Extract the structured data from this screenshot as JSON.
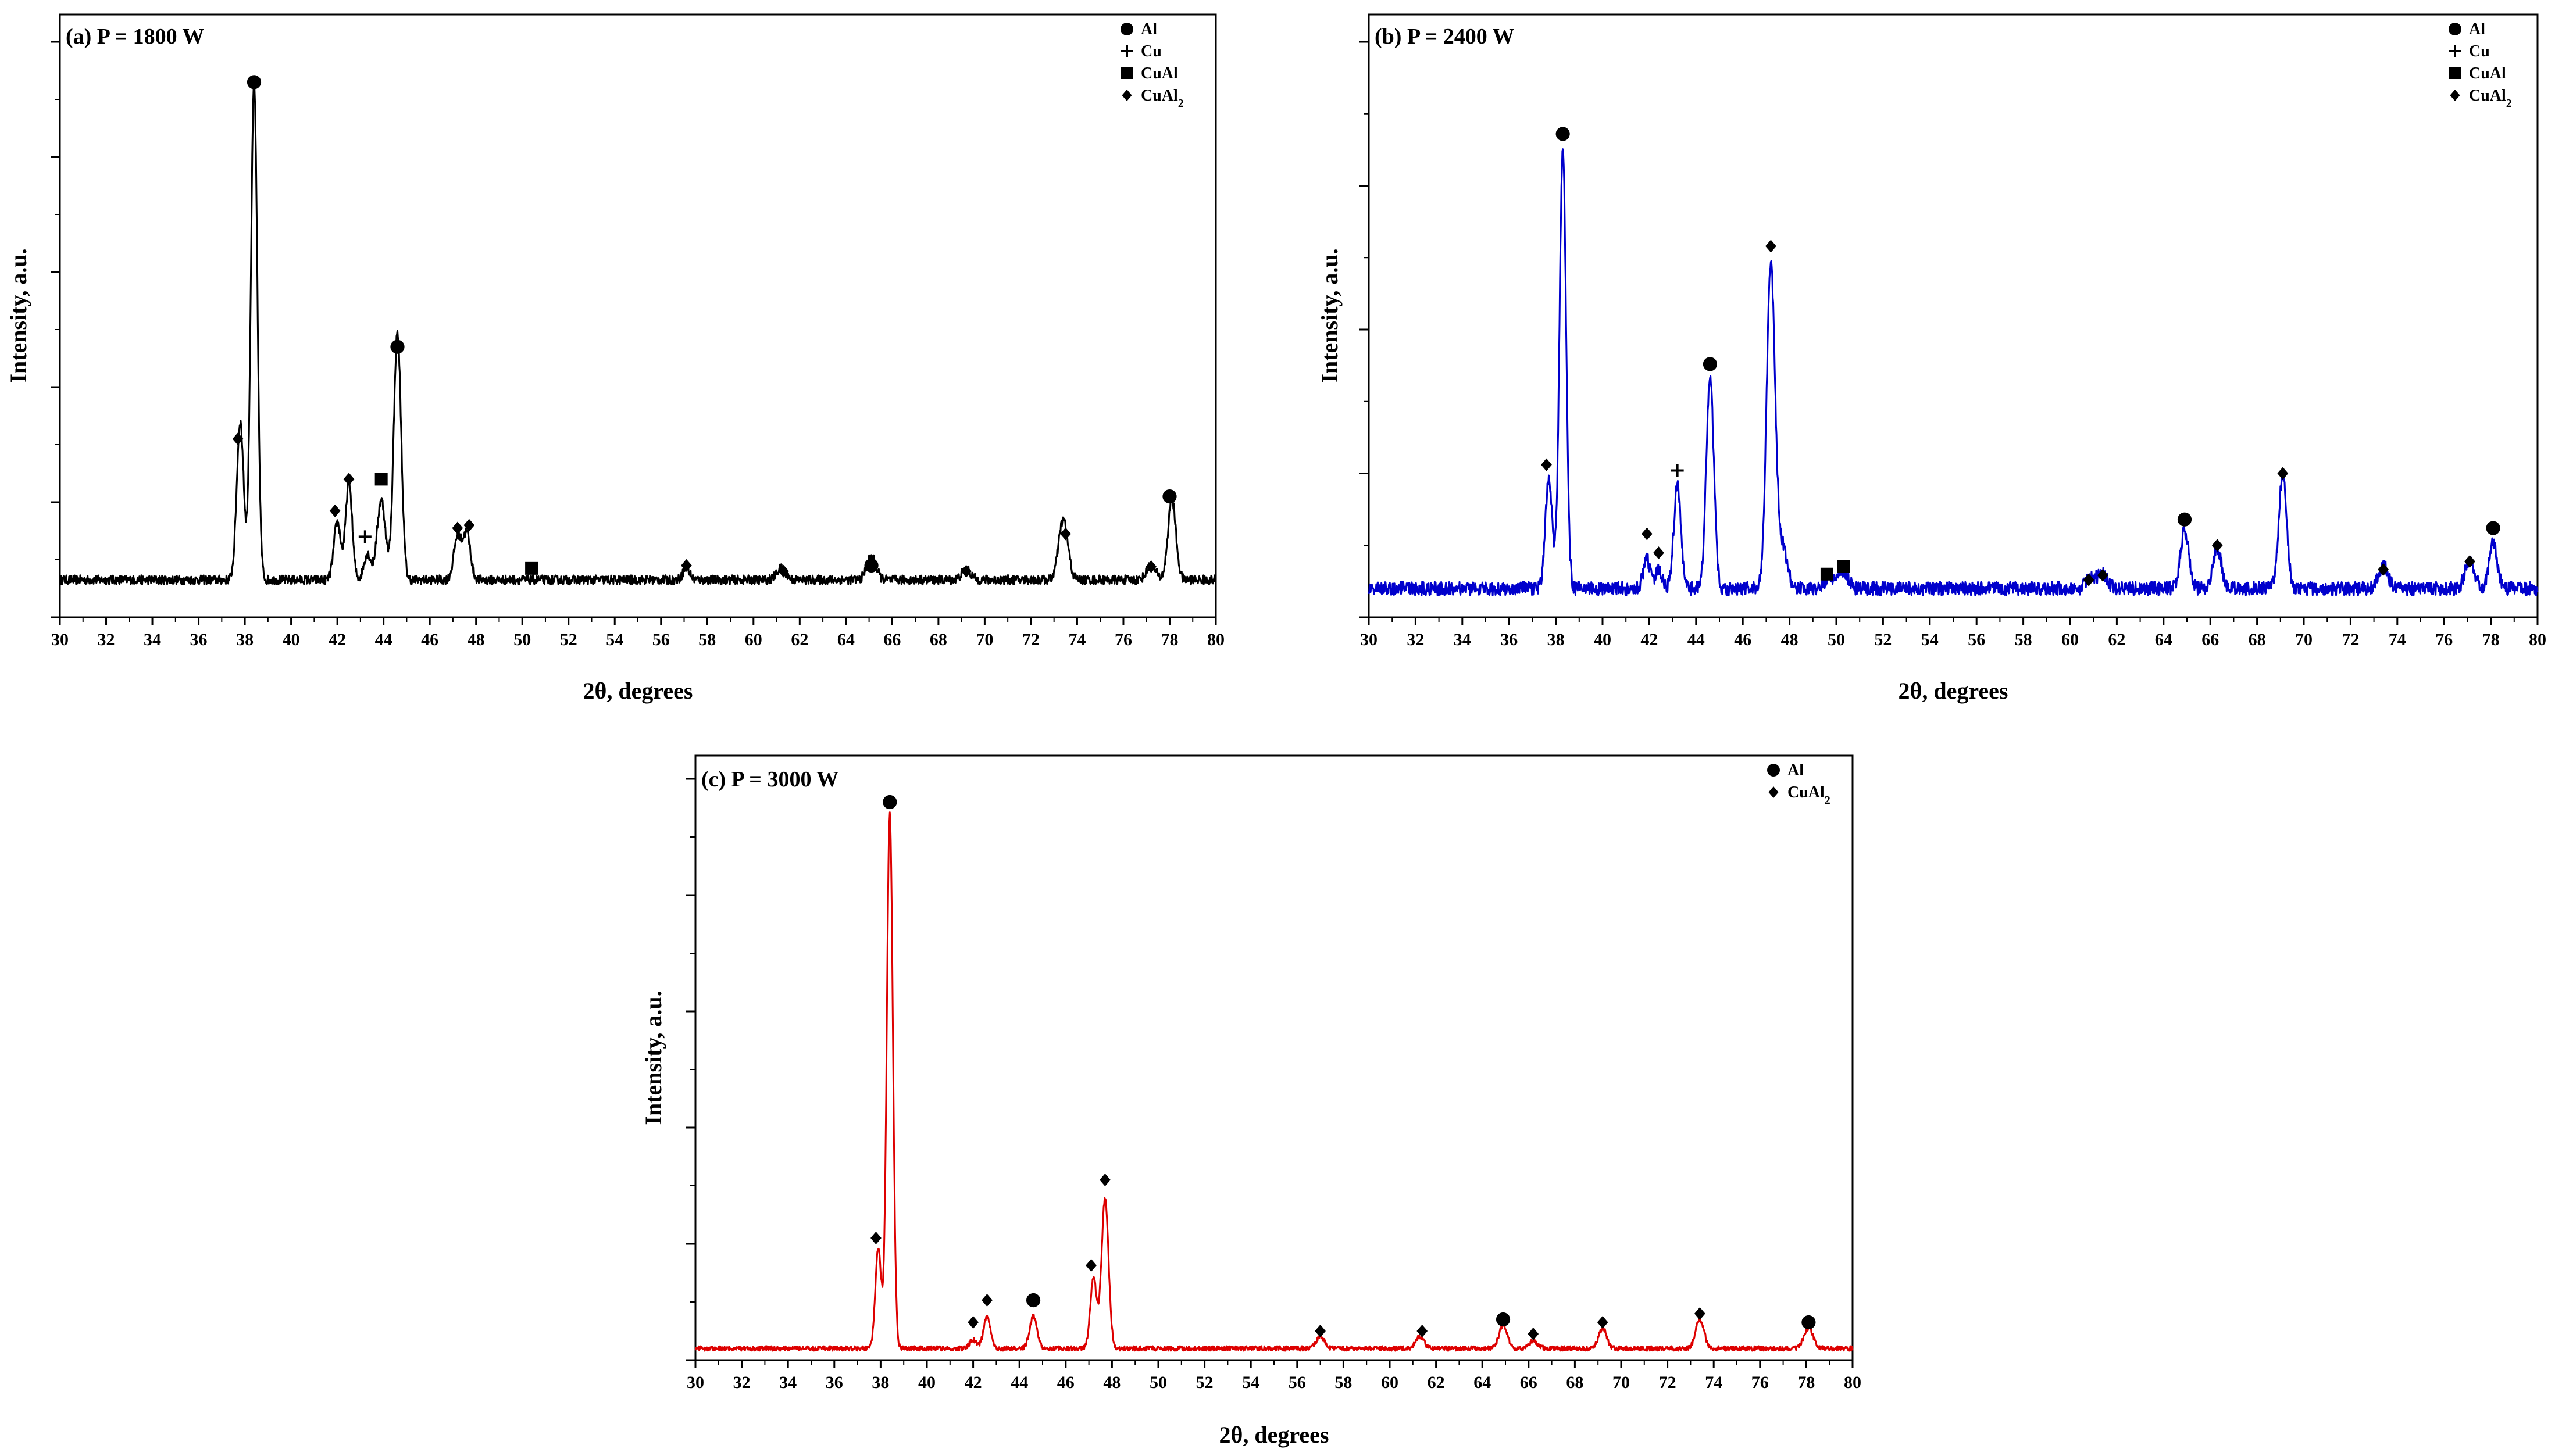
{
  "chart_data": [
    {
      "type": "line",
      "title": "(a) P = 1800 W",
      "xlabel": "2θ, degrees",
      "ylabel": "Intensity, a.u.",
      "xlim": [
        30,
        80
      ],
      "ylim": [
        0,
        1.0
      ],
      "x_ticks": [
        "30",
        "32",
        "34",
        "36",
        "38",
        "40",
        "42",
        "44",
        "46",
        "48",
        "50",
        "52",
        "54",
        "56",
        "58",
        "60",
        "62",
        "64",
        "66",
        "68",
        "70",
        "72",
        "74",
        "76",
        "78",
        "80"
      ],
      "y_ticks": [
        0,
        0.2,
        0.4,
        0.6,
        0.8,
        1.0
      ],
      "grid": false,
      "legend_position": "top-right",
      "legend": [
        {
          "marker": "circle",
          "label": "Al"
        },
        {
          "marker": "plus",
          "label": "Cu"
        },
        {
          "marker": "square",
          "label": "CuAl"
        },
        {
          "marker": "diamond",
          "label": "CuAl",
          "subscript": "2"
        }
      ],
      "series": [
        {
          "color": "#000000",
          "baseline": 0.065,
          "noise": 0.008,
          "peaks": [
            {
              "x": 37.8,
              "h": 0.275,
              "w": 0.15
            },
            {
              "x": 38.4,
              "h": 0.86,
              "w": 0.14
            },
            {
              "x": 42.0,
              "h": 0.1,
              "w": 0.15
            },
            {
              "x": 42.5,
              "h": 0.17,
              "w": 0.14
            },
            {
              "x": 43.3,
              "h": 0.045,
              "w": 0.15
            },
            {
              "x": 43.9,
              "h": 0.14,
              "w": 0.18
            },
            {
              "x": 44.6,
              "h": 0.43,
              "w": 0.16
            },
            {
              "x": 47.2,
              "h": 0.075,
              "w": 0.16
            },
            {
              "x": 47.6,
              "h": 0.08,
              "w": 0.16
            },
            {
              "x": 57.1,
              "h": 0.02,
              "w": 0.15
            },
            {
              "x": 61.2,
              "h": 0.02,
              "w": 0.2
            },
            {
              "x": 65.1,
              "h": 0.04,
              "w": 0.2
            },
            {
              "x": 69.2,
              "h": 0.018,
              "w": 0.2
            },
            {
              "x": 73.4,
              "h": 0.105,
              "w": 0.2
            },
            {
              "x": 77.2,
              "h": 0.025,
              "w": 0.2
            },
            {
              "x": 78.1,
              "h": 0.14,
              "w": 0.17
            }
          ]
        }
      ],
      "annotations": [
        {
          "marker": "diamond",
          "x": 37.7,
          "y": 0.31
        },
        {
          "marker": "circle",
          "x": 38.4,
          "y": 0.93
        },
        {
          "marker": "diamond",
          "x": 41.9,
          "y": 0.185
        },
        {
          "marker": "diamond",
          "x": 42.5,
          "y": 0.24
        },
        {
          "marker": "plus",
          "x": 43.2,
          "y": 0.14
        },
        {
          "marker": "square",
          "x": 43.9,
          "y": 0.24
        },
        {
          "marker": "circle",
          "x": 44.6,
          "y": 0.47
        },
        {
          "marker": "diamond",
          "x": 47.2,
          "y": 0.155
        },
        {
          "marker": "diamond",
          "x": 47.7,
          "y": 0.16
        },
        {
          "marker": "square",
          "x": 50.4,
          "y": 0.085
        },
        {
          "marker": "diamond",
          "x": 57.1,
          "y": 0.09
        },
        {
          "marker": "diamond",
          "x": 61.3,
          "y": 0.08
        },
        {
          "marker": "circle",
          "x": 65.1,
          "y": 0.09
        },
        {
          "marker": "diamond",
          "x": 69.2,
          "y": 0.08
        },
        {
          "marker": "diamond",
          "x": 73.5,
          "y": 0.145
        },
        {
          "marker": "diamond",
          "x": 77.2,
          "y": 0.088
        },
        {
          "marker": "circle",
          "x": 78.0,
          "y": 0.21
        }
      ]
    },
    {
      "type": "line",
      "title": "(b) P = 2400 W",
      "xlabel": "2θ, degrees",
      "ylabel": "Intensity, a.u.",
      "xlim": [
        30,
        80
      ],
      "ylim": [
        0,
        1.0
      ],
      "x_ticks": [
        "30",
        "32",
        "34",
        "36",
        "38",
        "40",
        "42",
        "44",
        "46",
        "48",
        "50",
        "52",
        "54",
        "56",
        "58",
        "60",
        "62",
        "64",
        "66",
        "68",
        "70",
        "72",
        "74",
        "76",
        "78",
        "80"
      ],
      "y_ticks": [
        0,
        0.25,
        0.5,
        0.75,
        1.0
      ],
      "grid": false,
      "legend_position": "top-right",
      "legend": [
        {
          "marker": "circle",
          "label": "Al"
        },
        {
          "marker": "plus",
          "label": "Cu"
        },
        {
          "marker": "square",
          "label": "CuAl"
        },
        {
          "marker": "diamond",
          "label": "CuAl",
          "subscript": "2"
        }
      ],
      "series": [
        {
          "color": "#0000cc",
          "baseline": 0.05,
          "noise": 0.012,
          "peaks": [
            {
              "x": 37.7,
              "h": 0.19,
              "w": 0.15
            },
            {
              "x": 38.3,
              "h": 0.76,
              "w": 0.14
            },
            {
              "x": 41.9,
              "h": 0.05,
              "w": 0.15
            },
            {
              "x": 42.4,
              "h": 0.03,
              "w": 0.15
            },
            {
              "x": 43.2,
              "h": 0.18,
              "w": 0.15
            },
            {
              "x": 44.6,
              "h": 0.37,
              "w": 0.16
            },
            {
              "x": 47.2,
              "h": 0.56,
              "w": 0.18
            },
            {
              "x": 47.7,
              "h": 0.07,
              "w": 0.2
            },
            {
              "x": 49.7,
              "h": 0.02,
              "w": 0.2
            },
            {
              "x": 50.3,
              "h": 0.03,
              "w": 0.2
            },
            {
              "x": 60.9,
              "h": 0.02,
              "w": 0.2
            },
            {
              "x": 61.4,
              "h": 0.025,
              "w": 0.2
            },
            {
              "x": 64.9,
              "h": 0.1,
              "w": 0.18
            },
            {
              "x": 66.3,
              "h": 0.07,
              "w": 0.18
            },
            {
              "x": 69.1,
              "h": 0.2,
              "w": 0.17
            },
            {
              "x": 73.4,
              "h": 0.04,
              "w": 0.2
            },
            {
              "x": 77.1,
              "h": 0.05,
              "w": 0.2
            },
            {
              "x": 78.1,
              "h": 0.08,
              "w": 0.17
            }
          ]
        }
      ],
      "annotations": [
        {
          "marker": "circle",
          "x": 38.3,
          "y": 0.84
        },
        {
          "marker": "diamond",
          "x": 37.6,
          "y": 0.265
        },
        {
          "marker": "diamond",
          "x": 41.9,
          "y": 0.145
        },
        {
          "marker": "diamond",
          "x": 42.4,
          "y": 0.112
        },
        {
          "marker": "plus",
          "x": 43.2,
          "y": 0.255
        },
        {
          "marker": "circle",
          "x": 44.6,
          "y": 0.44
        },
        {
          "marker": "diamond",
          "x": 47.2,
          "y": 0.645
        },
        {
          "marker": "square",
          "x": 49.6,
          "y": 0.075
        },
        {
          "marker": "square",
          "x": 50.3,
          "y": 0.088
        },
        {
          "marker": "diamond",
          "x": 60.8,
          "y": 0.065
        },
        {
          "marker": "diamond",
          "x": 61.4,
          "y": 0.073
        },
        {
          "marker": "circle",
          "x": 64.9,
          "y": 0.17
        },
        {
          "marker": "diamond",
          "x": 66.3,
          "y": 0.125
        },
        {
          "marker": "diamond",
          "x": 69.1,
          "y": 0.25
        },
        {
          "marker": "diamond",
          "x": 73.4,
          "y": 0.083
        },
        {
          "marker": "diamond",
          "x": 77.1,
          "y": 0.097
        },
        {
          "marker": "circle",
          "x": 78.1,
          "y": 0.155
        }
      ]
    },
    {
      "type": "line",
      "title": "(c) P = 3000 W",
      "xlabel": "2θ, degrees",
      "ylabel": "Intensity, a.u.",
      "xlim": [
        30,
        80
      ],
      "ylim": [
        0,
        1.0
      ],
      "x_ticks": [
        "30",
        "32",
        "34",
        "36",
        "38",
        "40",
        "42",
        "44",
        "46",
        "48",
        "50",
        "52",
        "54",
        "56",
        "58",
        "60",
        "62",
        "64",
        "66",
        "68",
        "70",
        "72",
        "74",
        "76",
        "78",
        "80"
      ],
      "y_ticks": [
        0,
        0.2,
        0.4,
        0.6,
        0.8,
        1.0
      ],
      "grid": false,
      "legend_position": "top-right",
      "legend": [
        {
          "marker": "circle",
          "label": "Al"
        },
        {
          "marker": "diamond",
          "label": "CuAl",
          "subscript": "2"
        }
      ],
      "series": [
        {
          "color": "#dd0000",
          "baseline": 0.02,
          "noise": 0.004,
          "peaks": [
            {
              "x": 37.9,
              "h": 0.17,
              "w": 0.13
            },
            {
              "x": 38.4,
              "h": 0.92,
              "w": 0.13
            },
            {
              "x": 42.0,
              "h": 0.015,
              "w": 0.15
            },
            {
              "x": 42.6,
              "h": 0.055,
              "w": 0.15
            },
            {
              "x": 44.6,
              "h": 0.055,
              "w": 0.16
            },
            {
              "x": 47.2,
              "h": 0.12,
              "w": 0.14
            },
            {
              "x": 47.7,
              "h": 0.26,
              "w": 0.15
            },
            {
              "x": 57.0,
              "h": 0.02,
              "w": 0.18
            },
            {
              "x": 61.3,
              "h": 0.02,
              "w": 0.18
            },
            {
              "x": 64.9,
              "h": 0.04,
              "w": 0.18
            },
            {
              "x": 66.2,
              "h": 0.012,
              "w": 0.2
            },
            {
              "x": 69.2,
              "h": 0.035,
              "w": 0.17
            },
            {
              "x": 73.4,
              "h": 0.05,
              "w": 0.18
            },
            {
              "x": 78.1,
              "h": 0.035,
              "w": 0.2
            }
          ]
        }
      ],
      "annotations": [
        {
          "marker": "circle",
          "x": 38.4,
          "y": 0.96
        },
        {
          "marker": "diamond",
          "x": 37.8,
          "y": 0.21
        },
        {
          "marker": "diamond",
          "x": 42.0,
          "y": 0.065
        },
        {
          "marker": "diamond",
          "x": 42.6,
          "y": 0.103
        },
        {
          "marker": "circle",
          "x": 44.6,
          "y": 0.103
        },
        {
          "marker": "diamond",
          "x": 47.1,
          "y": 0.163
        },
        {
          "marker": "diamond",
          "x": 47.7,
          "y": 0.31
        },
        {
          "marker": "diamond",
          "x": 57.0,
          "y": 0.05
        },
        {
          "marker": "diamond",
          "x": 61.4,
          "y": 0.05
        },
        {
          "marker": "circle",
          "x": 64.9,
          "y": 0.07
        },
        {
          "marker": "diamond",
          "x": 66.2,
          "y": 0.045
        },
        {
          "marker": "diamond",
          "x": 69.2,
          "y": 0.065
        },
        {
          "marker": "diamond",
          "x": 73.4,
          "y": 0.08
        },
        {
          "marker": "circle",
          "x": 78.1,
          "y": 0.065
        }
      ]
    }
  ]
}
